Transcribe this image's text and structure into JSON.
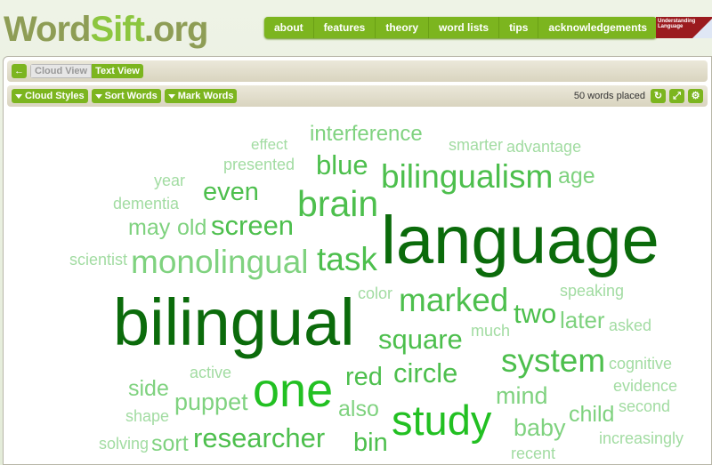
{
  "header": {
    "logo_word": "Word",
    "logo_sift": "Sift",
    "logo_org": ".org",
    "nav": [
      "about",
      "features",
      "theory",
      "word lists",
      "tips",
      "acknowledgements"
    ],
    "partner_logo_text": "Understanding Language"
  },
  "views": {
    "cloud": "Cloud View",
    "text": "Text View"
  },
  "toolbar": {
    "cloud_styles": "Cloud Styles",
    "sort_words": "Sort Words",
    "mark_words": "Mark Words",
    "status": "50 words placed"
  },
  "colors": {
    "accent": "#7cb51f",
    "dark": "#0b6b0b",
    "bright": "#22c022",
    "medium": "#4dbf4d",
    "light": "#7fd27f",
    "pale": "#a2dca2"
  },
  "cloud": {
    "words": [
      {
        "text": "interference",
        "c": "light"
      },
      {
        "text": "effect",
        "c": "pale"
      },
      {
        "text": "bilingualism",
        "c": "medium"
      },
      {
        "text": "brain",
        "c": "medium"
      },
      {
        "text": "smarter",
        "c": "pale"
      },
      {
        "text": "task",
        "c": "medium"
      },
      {
        "text": "age",
        "c": "light"
      },
      {
        "text": "advantage",
        "c": "pale"
      },
      {
        "text": "language",
        "c": "dark"
      },
      {
        "text": "dementia",
        "c": "pale"
      },
      {
        "text": "old",
        "c": "light"
      },
      {
        "text": "presented",
        "c": "pale"
      },
      {
        "text": "screen",
        "c": "medium"
      },
      {
        "text": "blue",
        "c": "medium"
      },
      {
        "text": "scientist",
        "c": "pale"
      },
      {
        "text": "year",
        "c": "pale"
      },
      {
        "text": "monolingual",
        "c": "light"
      },
      {
        "text": "even",
        "c": "medium"
      },
      {
        "text": "may",
        "c": "light"
      },
      {
        "text": "marked",
        "c": "medium"
      },
      {
        "text": "speaking",
        "c": "pale"
      },
      {
        "text": "square",
        "c": "medium"
      },
      {
        "text": "asked",
        "c": "pale"
      },
      {
        "text": "bilingual",
        "c": "dark"
      },
      {
        "text": "circle",
        "c": "medium"
      },
      {
        "text": "two",
        "c": "medium"
      },
      {
        "text": "cognitive",
        "c": "pale"
      },
      {
        "text": "mind",
        "c": "light"
      },
      {
        "text": "increasingly",
        "c": "pale"
      },
      {
        "text": "active",
        "c": "pale"
      },
      {
        "text": "much",
        "c": "pale"
      },
      {
        "text": "red",
        "c": "medium"
      },
      {
        "text": "shape",
        "c": "pale"
      },
      {
        "text": "later",
        "c": "light"
      },
      {
        "text": "system",
        "c": "medium"
      },
      {
        "text": "one",
        "c": "bright"
      },
      {
        "text": "evidence",
        "c": "pale"
      },
      {
        "text": "baby",
        "c": "light"
      },
      {
        "text": "second",
        "c": "pale"
      },
      {
        "text": "side",
        "c": "light"
      },
      {
        "text": "researcher",
        "c": "medium"
      },
      {
        "text": "puppet",
        "c": "light"
      },
      {
        "text": "study",
        "c": "bright"
      },
      {
        "text": "child",
        "c": "light"
      },
      {
        "text": "solving",
        "c": "pale"
      },
      {
        "text": "sort",
        "c": "light"
      },
      {
        "text": "color",
        "c": "pale"
      },
      {
        "text": "also",
        "c": "light"
      },
      {
        "text": "bin",
        "c": "medium"
      },
      {
        "text": "recent",
        "c": "pale"
      }
    ]
  }
}
